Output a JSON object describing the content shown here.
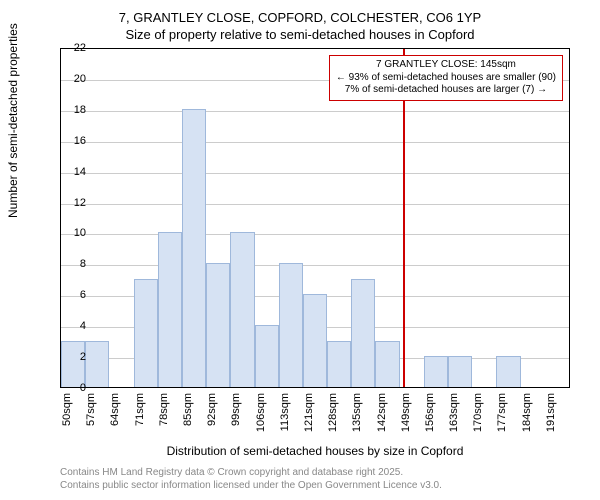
{
  "chart": {
    "type": "histogram",
    "title_line1": "7, GRANTLEY CLOSE, COPFORD, COLCHESTER, CO6 1YP",
    "title_line2": "Size of property relative to semi-detached houses in Copford",
    "ylabel": "Number of semi-detached properties",
    "xlabel": "Distribution of semi-detached houses by size in Copford",
    "title_fontsize": 13,
    "label_fontsize": 12,
    "tick_fontsize": 11,
    "ylim": [
      0,
      22
    ],
    "ytick_step": 2,
    "grid_color": "#cccccc",
    "background_color": "#ffffff",
    "bar_fill": "#d6e2f3",
    "bar_stroke": "#9fb8db",
    "categories": [
      "50sqm",
      "57sqm",
      "64sqm",
      "71sqm",
      "78sqm",
      "85sqm",
      "92sqm",
      "99sqm",
      "106sqm",
      "113sqm",
      "121sqm",
      "128sqm",
      "135sqm",
      "142sqm",
      "149sqm",
      "156sqm",
      "163sqm",
      "170sqm",
      "177sqm",
      "184sqm",
      "191sqm"
    ],
    "values": [
      3,
      3,
      0,
      7,
      10,
      18,
      8,
      10,
      4,
      8,
      6,
      3,
      7,
      3,
      0,
      2,
      2,
      0,
      2,
      0,
      0
    ],
    "marker": {
      "position_sqm": 145,
      "xmin_sqm": 50,
      "xstep_sqm": 7,
      "color": "#cc0000",
      "line1": "7 GRANTLEY CLOSE: 145sqm",
      "line2": "← 93% of semi-detached houses are smaller (90)",
      "line3": "7% of semi-detached houses are larger (7) →"
    },
    "attribution_line1": "Contains HM Land Registry data © Crown copyright and database right 2025.",
    "attribution_line2": "Contains public sector information licensed under the Open Government Licence v3.0.",
    "attribution_color": "#888888"
  }
}
